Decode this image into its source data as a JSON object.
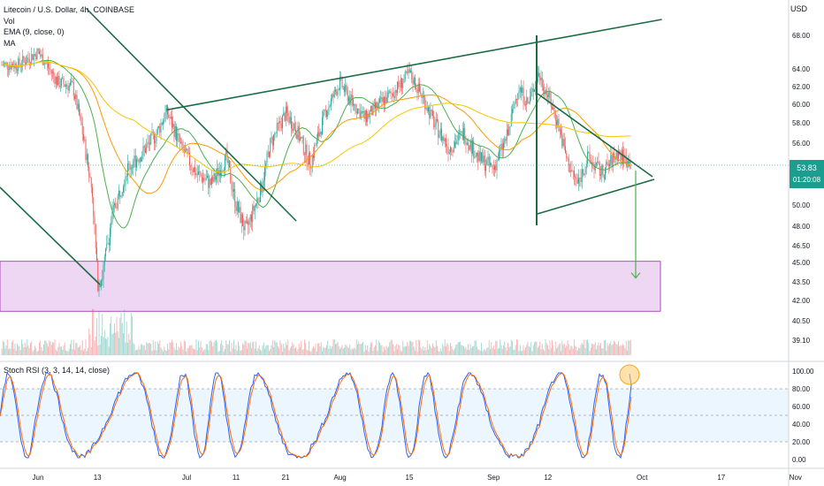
{
  "header": {
    "title": "Litecoin / U.S. Dollar, 4h, COINBASE",
    "vol": "Vol",
    "ema": "EMA (9, close, 0)",
    "ma": "MA",
    "currency": "USD"
  },
  "price_badge": {
    "price": "53.83",
    "countdown": "01:20:08"
  },
  "rsi_label": "Stoch RSI (3, 3, 14, 14, close)",
  "colors": {
    "up": "#26a69a",
    "down": "#ef5350",
    "trend": "#1b6b45",
    "zone_fill": "#e8c9ee",
    "zone_stroke": "#9c27b0",
    "ema": "#ff9800",
    "ma_green": "#4caf50",
    "ma_yellow": "#f7c600"
  },
  "chart_data": [
    {
      "type": "line",
      "title": "Litecoin / U.S. Dollar, 4h, COINBASE",
      "x_labels": [
        "Jun",
        "13",
        "Jul",
        "11",
        "21",
        "Aug",
        "15",
        "Sep",
        "12",
        "Oct",
        "17",
        "Nov"
      ],
      "y_ticks": [
        "68.00",
        "64.00",
        "62.00",
        "60.00",
        "58.00",
        "56.00",
        "52.00",
        "50.00",
        "48.00",
        "46.50",
        "45.00",
        "43.50",
        "42.00",
        "40.50",
        "39.10"
      ],
      "price_path": [
        [
          "05-28",
          64.5
        ],
        [
          "06-01",
          66
        ],
        [
          "06-05",
          62.5
        ],
        [
          "06-08",
          62
        ],
        [
          "06-10",
          57
        ],
        [
          "06-12",
          51
        ],
        [
          "06-13",
          43.5
        ],
        [
          "06-14",
          44
        ],
        [
          "06-16",
          49
        ],
        [
          "06-19",
          53.5
        ],
        [
          "06-22",
          55
        ],
        [
          "06-25",
          57
        ],
        [
          "06-27",
          59.2
        ],
        [
          "06-30",
          55.5
        ],
        [
          "07-03",
          53
        ],
        [
          "07-06",
          52
        ],
        [
          "07-09",
          54.5
        ],
        [
          "07-11",
          50
        ],
        [
          "07-13",
          47.5
        ],
        [
          "07-16",
          51.5
        ],
        [
          "07-18",
          56
        ],
        [
          "07-21",
          59
        ],
        [
          "07-23",
          57.5
        ],
        [
          "07-26",
          54
        ],
        [
          "07-29",
          59
        ],
        [
          "08-01",
          62.5
        ],
        [
          "08-03",
          60.5
        ],
        [
          "08-06",
          58.5
        ],
        [
          "08-09",
          60
        ],
        [
          "08-12",
          61.5
        ],
        [
          "08-15",
          63.5
        ],
        [
          "08-18",
          60.5
        ],
        [
          "08-20",
          58
        ],
        [
          "08-23",
          55.5
        ],
        [
          "08-26",
          57
        ],
        [
          "08-29",
          54.5
        ],
        [
          "09-01",
          53.5
        ],
        [
          "09-04",
          57
        ],
        [
          "09-06",
          62
        ],
        [
          "09-08",
          60
        ],
        [
          "09-10",
          63.5
        ],
        [
          "09-12",
          61
        ],
        [
          "09-14",
          58
        ],
        [
          "09-16",
          54
        ],
        [
          "09-18",
          52
        ],
        [
          "09-20",
          54.5
        ],
        [
          "09-23",
          53
        ],
        [
          "09-26",
          55
        ],
        [
          "09-29",
          54
        ],
        [
          "10-01",
          54.5
        ],
        [
          "10-03",
          53.83
        ]
      ],
      "annotations": {
        "support_zone": [
          41.2,
          45.1
        ],
        "wedge_apex_price": 52.3,
        "target_arrow": {
          "from": 53.3,
          "to": 43.8
        },
        "ascending_line": {
          "from": [
            "06-27",
            59.4
          ],
          "to": [
            "10-05",
            69.8
          ]
        }
      }
    },
    {
      "type": "line",
      "title": "Stoch RSI (3, 3, 14, 14, close)",
      "y_ticks": [
        "100.00",
        "80.00",
        "60.00",
        "40.00",
        "20.00",
        "0.00"
      ],
      "ylim": [
        0,
        100
      ],
      "bands": [
        20,
        80
      ]
    }
  ]
}
